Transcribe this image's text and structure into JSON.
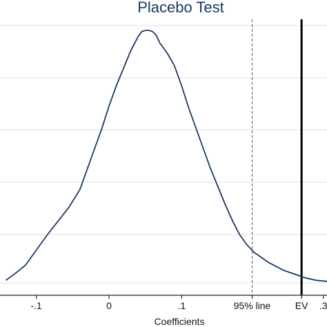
{
  "chart_data": {
    "type": "line",
    "title": "Placebo Test",
    "xlabel": "Coefficients",
    "ylabel": "",
    "xlim": [
      -0.15,
      0.3
    ],
    "x_ticks": [
      {
        "value": -0.1,
        "label": "-.1"
      },
      {
        "value": 0,
        "label": "0"
      },
      {
        "value": 0.1,
        "label": ".1"
      },
      {
        "value": 0.197,
        "label": "95% line"
      },
      {
        "value": 0.265,
        "label": "EV"
      },
      {
        "value": 0.295,
        "label": ".3"
      }
    ],
    "grid": true,
    "series": [
      {
        "x": [
          -0.142,
          -0.13,
          -0.115,
          -0.1,
          -0.085,
          -0.07,
          -0.055,
          -0.04,
          -0.03,
          -0.02,
          -0.01,
          0.0,
          0.01,
          0.02,
          0.03,
          0.04,
          0.045,
          0.05,
          0.055,
          0.06,
          0.065,
          0.07,
          0.075,
          0.08,
          0.09,
          0.1,
          0.11,
          0.12,
          0.13,
          0.14,
          0.15,
          0.16,
          0.17,
          0.18,
          0.19,
          0.2,
          0.21,
          0.22,
          0.23,
          0.24,
          0.25,
          0.26,
          0.27,
          0.285,
          0.3
        ],
        "y": [
          0.01,
          0.035,
          0.07,
          0.13,
          0.19,
          0.245,
          0.3,
          0.37,
          0.45,
          0.53,
          0.61,
          0.7,
          0.78,
          0.85,
          0.92,
          0.975,
          0.995,
          1.0,
          1.0,
          0.995,
          0.98,
          0.95,
          0.93,
          0.91,
          0.86,
          0.78,
          0.69,
          0.61,
          0.53,
          0.45,
          0.38,
          0.31,
          0.245,
          0.19,
          0.15,
          0.12,
          0.1,
          0.08,
          0.065,
          0.05,
          0.04,
          0.03,
          0.02,
          0.01,
          0.006
        ]
      }
    ],
    "reference_lines": [
      {
        "x": 0.197,
        "style": "dashed",
        "label": "95% line"
      },
      {
        "x": 0.265,
        "style": "solid",
        "label": "EV"
      }
    ],
    "colors": {
      "line": "#1b3766",
      "title": "#1b3766",
      "grid": "#e0e0e0"
    }
  }
}
